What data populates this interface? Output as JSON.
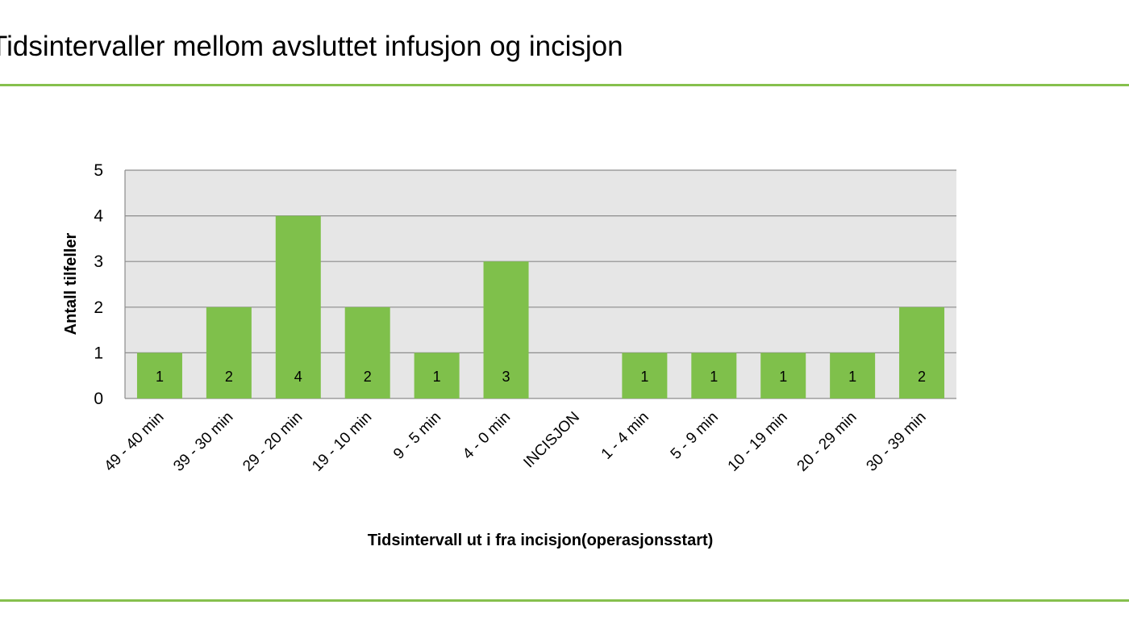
{
  "slide": {
    "title": "Tidsintervaller mellom avsluttet infusjon og incisjon",
    "accent_color": "#86c04d"
  },
  "chart_data": {
    "type": "bar",
    "title": "",
    "categories": [
      "49 - 40 min",
      "39 - 30 min",
      "29 - 20 min",
      "19 - 10 min",
      "9 - 5 min",
      "4 - 0 min",
      "INCISJON",
      "1 - 4 min",
      "5 - 9 min",
      "10 - 19 min",
      "20 - 29 min",
      "30 - 39 min"
    ],
    "values": [
      1,
      2,
      4,
      2,
      1,
      3,
      0,
      1,
      1,
      1,
      1,
      2
    ],
    "data_labels": [
      "1",
      "2",
      "4",
      "2",
      "1",
      "3",
      "",
      "1",
      "1",
      "1",
      "1",
      "2"
    ],
    "xlabel": "Tidsintervall ut i fra incisjon(operasjonsstart)",
    "ylabel": "Antall tilfeller",
    "ylim": [
      0,
      5
    ],
    "yticks": [
      0,
      1,
      2,
      3,
      4,
      5
    ],
    "grid": true,
    "legend": "none",
    "bar_color": "#7fc04b",
    "plot_background": "#e6e6e6",
    "gridline_color": "#8c8c8c"
  }
}
